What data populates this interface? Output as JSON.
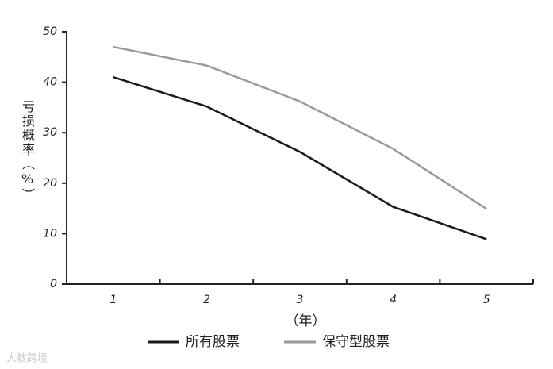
{
  "chart_data": {
    "type": "line",
    "y_label": "亏损概率（%）",
    "x_label": "（年）",
    "categories": [
      "1",
      "2",
      "3",
      "4",
      "5"
    ],
    "series": [
      {
        "name": "所有股票",
        "color": "#1a1a1a",
        "values": [
          41,
          35.2,
          26.2,
          15.3,
          8.9
        ]
      },
      {
        "name": "保守型股票",
        "color": "#9a9a9a",
        "values": [
          47,
          43.3,
          36.2,
          26.8,
          14.9
        ]
      }
    ],
    "ylim": [
      0,
      50
    ],
    "yticks": [
      0,
      10,
      20,
      30,
      40,
      50
    ],
    "watermark": "大数跨境"
  }
}
